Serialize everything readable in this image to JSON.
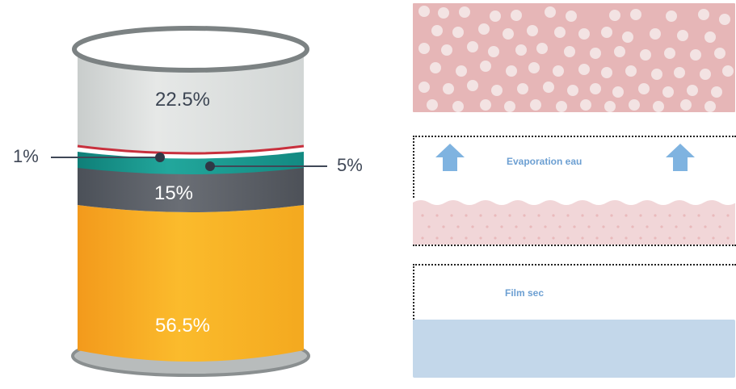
{
  "can": {
    "segments": [
      {
        "id": "top",
        "value_label": "22.5%",
        "color": "#d9dcdb",
        "value": 22.5
      },
      {
        "id": "red-line",
        "value_label": "1%",
        "color": "#c8303d",
        "value": 1
      },
      {
        "id": "teal",
        "value_label": "5%",
        "color": "#1a9a8f",
        "value": 5
      },
      {
        "id": "grey",
        "value_label": "15%",
        "color": "#5a5f66",
        "value": 15
      },
      {
        "id": "yellow",
        "value_label": "56.5%",
        "color": "#f8ae20",
        "value": 56.5
      }
    ],
    "callout_left": "1%",
    "callout_right": "5%"
  },
  "panels": {
    "evaporation_label": "Evaporation eau",
    "film_label": "Film sec"
  },
  "colors": {
    "pink": "#e6b6b7",
    "pink_light": "#f1d6d8",
    "blue_light": "#c3d7ea",
    "arrow_blue": "#7fb3e0",
    "label_blue": "#6c9fd2"
  }
}
